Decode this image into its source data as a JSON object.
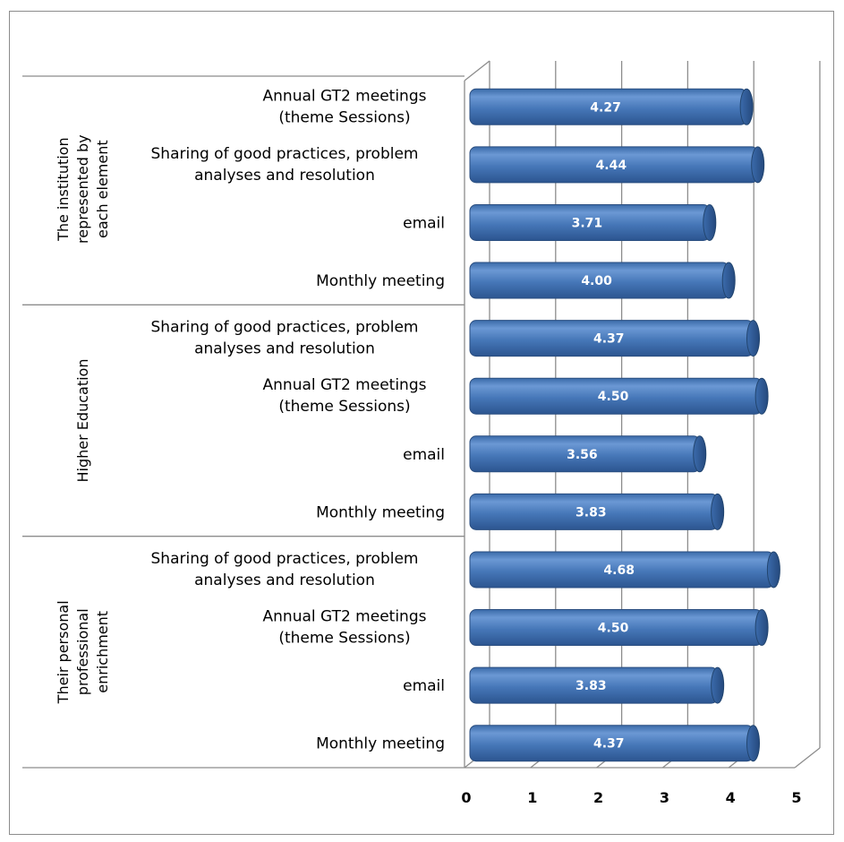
{
  "colors": {
    "bar_fill": "#4a7ec0",
    "bar_dark": "#2f5b94",
    "bar_light": "#7ba4da",
    "grid": "#8c8c8c",
    "frame": "#8c8c8c"
  },
  "chart_data": {
    "type": "bar",
    "orientation": "horizontal",
    "style": "3d-cylinder",
    "title": "",
    "xlabel": "",
    "ylabel": "",
    "xlim": [
      0,
      5
    ],
    "x_ticks": [
      "0",
      "1",
      "2",
      "3",
      "4",
      "5"
    ],
    "grid": true,
    "legend": "none",
    "groups": [
      {
        "name": "The institution represented by each element",
        "items": [
          {
            "label": "Annual GT2 meetings (theme Sessions)",
            "value": 4.27,
            "value_label": "4.27"
          },
          {
            "label": "Sharing of good practices, problem analyses and resolution",
            "value": 4.44,
            "value_label": "4.44"
          },
          {
            "label": "email",
            "value": 3.71,
            "value_label": "3.71"
          },
          {
            "label": "Monthly meeting",
            "value": 4.0,
            "value_label": "4.00"
          }
        ]
      },
      {
        "name": "Higher Education",
        "items": [
          {
            "label": "Sharing of good practices, problem analyses and resolution",
            "value": 4.37,
            "value_label": "4.37"
          },
          {
            "label": "Annual GT2 meetings (theme Sessions)",
            "value": 4.5,
            "value_label": "4.50"
          },
          {
            "label": "email",
            "value": 3.56,
            "value_label": "3.56"
          },
          {
            "label": "Monthly meeting",
            "value": 3.83,
            "value_label": "3.83"
          }
        ]
      },
      {
        "name": "Their personal professional enrichment",
        "items": [
          {
            "label": "Sharing of good practices, problem analyses and resolution",
            "value": 4.68,
            "value_label": "4.68"
          },
          {
            "label": "Annual GT2 meetings (theme Sessions)",
            "value": 4.5,
            "value_label": "4.50"
          },
          {
            "label": "email",
            "value": 3.83,
            "value_label": "3.83"
          },
          {
            "label": "Monthly meeting",
            "value": 4.37,
            "value_label": "4.37"
          }
        ]
      }
    ]
  }
}
